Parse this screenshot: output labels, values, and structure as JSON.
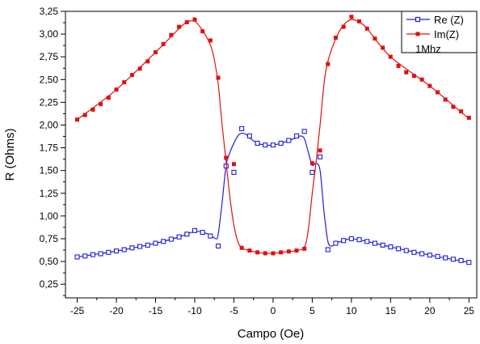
{
  "chart_data": {
    "type": "line",
    "xlabel": "Campo (Oe)",
    "ylabel": "R (Ohms)",
    "xlim": [
      -26.5,
      26
    ],
    "ylim": [
      0.1,
      3.25
    ],
    "xticks": [
      -25,
      -20,
      -15,
      -10,
      -5,
      0,
      5,
      10,
      15,
      20,
      25
    ],
    "xtick_labels": [
      "-25",
      "-20",
      "-15",
      "-10",
      "-5",
      "0",
      "5",
      "10",
      "15",
      "20",
      "25"
    ],
    "yticks": [
      0.25,
      0.5,
      0.75,
      1.0,
      1.25,
      1.5,
      1.75,
      2.0,
      2.25,
      2.5,
      2.75,
      3.0,
      3.25
    ],
    "ytick_labels": [
      "0,25",
      "0,50",
      "0,75",
      "1,00",
      "1,25",
      "1,50",
      "1,75",
      "2,00",
      "2,25",
      "2,50",
      "2,75",
      "3,00",
      "3,25"
    ],
    "grid": false,
    "legend_position": "top-right",
    "annotation": "1Mhz",
    "series": [
      {
        "name": "Re (Z)",
        "color": "#1f1fd6",
        "marker": "open-square",
        "points": [
          [
            -25,
            0.55
          ],
          [
            -24,
            0.56
          ],
          [
            -23,
            0.575
          ],
          [
            -22,
            0.585
          ],
          [
            -21,
            0.6
          ],
          [
            -20,
            0.615
          ],
          [
            -19,
            0.63
          ],
          [
            -18,
            0.65
          ],
          [
            -17,
            0.665
          ],
          [
            -16,
            0.68
          ],
          [
            -15,
            0.7
          ],
          [
            -14,
            0.72
          ],
          [
            -13,
            0.745
          ],
          [
            -12,
            0.77
          ],
          [
            -11,
            0.8
          ],
          [
            -10,
            0.84
          ],
          [
            -9,
            0.82
          ],
          [
            -8,
            0.78
          ],
          [
            -7,
            0.67
          ],
          [
            -6,
            1.55
          ],
          [
            -5,
            1.48
          ],
          [
            -4,
            1.96
          ],
          [
            -3,
            1.88
          ],
          [
            -2,
            1.8
          ],
          [
            -1,
            1.78
          ],
          [
            0,
            1.78
          ],
          [
            1,
            1.8
          ],
          [
            2,
            1.83
          ],
          [
            3,
            1.88
          ],
          [
            4,
            1.93
          ],
          [
            5,
            1.48
          ],
          [
            6,
            1.65
          ],
          [
            7,
            0.63
          ],
          [
            8,
            0.7
          ],
          [
            9,
            0.73
          ],
          [
            10,
            0.75
          ],
          [
            11,
            0.74
          ],
          [
            12,
            0.72
          ],
          [
            13,
            0.7
          ],
          [
            14,
            0.68
          ],
          [
            15,
            0.66
          ],
          [
            16,
            0.64
          ],
          [
            17,
            0.62
          ],
          [
            18,
            0.6
          ],
          [
            19,
            0.585
          ],
          [
            20,
            0.57
          ],
          [
            21,
            0.555
          ],
          [
            22,
            0.54
          ],
          [
            23,
            0.525
          ],
          [
            24,
            0.51
          ],
          [
            25,
            0.49
          ]
        ],
        "curve": [
          [
            -25,
            0.55
          ],
          [
            -20,
            0.615
          ],
          [
            -15,
            0.7
          ],
          [
            -12,
            0.77
          ],
          [
            -10,
            0.83
          ],
          [
            -9,
            0.82
          ],
          [
            -8,
            0.79
          ],
          [
            -7.3,
            0.75
          ],
          [
            -7,
            0.8
          ],
          [
            -6.5,
            1.15
          ],
          [
            -6,
            1.55
          ],
          [
            -5.5,
            1.7
          ],
          [
            -5,
            1.8
          ],
          [
            -4.5,
            1.88
          ],
          [
            -4,
            1.91
          ],
          [
            -3.5,
            1.9
          ],
          [
            -3,
            1.86
          ],
          [
            -2,
            1.8
          ],
          [
            -1,
            1.78
          ],
          [
            0,
            1.78
          ],
          [
            1,
            1.8
          ],
          [
            2,
            1.83
          ],
          [
            3,
            1.86
          ],
          [
            3.5,
            1.88
          ],
          [
            4,
            1.85
          ],
          [
            4.5,
            1.7
          ],
          [
            5,
            1.56
          ],
          [
            5.5,
            1.58
          ],
          [
            6,
            1.5
          ],
          [
            6.5,
            1.05
          ],
          [
            7,
            0.72
          ],
          [
            7.5,
            0.67
          ],
          [
            8,
            0.7
          ],
          [
            9,
            0.73
          ],
          [
            10,
            0.75
          ],
          [
            12,
            0.72
          ],
          [
            15,
            0.66
          ],
          [
            20,
            0.57
          ],
          [
            25,
            0.49
          ]
        ]
      },
      {
        "name": "Im(Z)",
        "color": "#e01010",
        "marker": "filled-square",
        "points": [
          [
            -25,
            2.06
          ],
          [
            -24,
            2.11
          ],
          [
            -23,
            2.17
          ],
          [
            -22,
            2.23
          ],
          [
            -21,
            2.3
          ],
          [
            -20,
            2.39
          ],
          [
            -19,
            2.47
          ],
          [
            -18,
            2.55
          ],
          [
            -17,
            2.62
          ],
          [
            -16,
            2.7
          ],
          [
            -15,
            2.8
          ],
          [
            -14,
            2.89
          ],
          [
            -13,
            2.99
          ],
          [
            -12,
            3.08
          ],
          [
            -11,
            3.13
          ],
          [
            -10,
            3.16
          ],
          [
            -9,
            3.03
          ],
          [
            -8,
            2.93
          ],
          [
            -7,
            2.52
          ],
          [
            -6,
            1.64
          ],
          [
            -5,
            1.57
          ],
          [
            -4,
            0.65
          ],
          [
            -3,
            0.62
          ],
          [
            -2,
            0.6
          ],
          [
            -1,
            0.59
          ],
          [
            0,
            0.59
          ],
          [
            1,
            0.6
          ],
          [
            2,
            0.61
          ],
          [
            3,
            0.62
          ],
          [
            4,
            0.64
          ],
          [
            5,
            1.58
          ],
          [
            6,
            1.72
          ],
          [
            7,
            2.67
          ],
          [
            8,
            2.96
          ],
          [
            9,
            3.08
          ],
          [
            10,
            3.19
          ],
          [
            11,
            3.14
          ],
          [
            12,
            3.06
          ],
          [
            13,
            2.95
          ],
          [
            14,
            2.85
          ],
          [
            15,
            2.75
          ],
          [
            16,
            2.65
          ],
          [
            17,
            2.58
          ],
          [
            18,
            2.54
          ],
          [
            19,
            2.5
          ],
          [
            20,
            2.43
          ],
          [
            21,
            2.36
          ],
          [
            22,
            2.28
          ],
          [
            23,
            2.2
          ],
          [
            24,
            2.15
          ],
          [
            25,
            2.08
          ]
        ],
        "curve": [
          [
            -25,
            2.06
          ],
          [
            -20,
            2.39
          ],
          [
            -15,
            2.8
          ],
          [
            -12,
            3.06
          ],
          [
            -11,
            3.13
          ],
          [
            -10,
            3.14
          ],
          [
            -9,
            3.04
          ],
          [
            -8,
            2.88
          ],
          [
            -7.5,
            2.72
          ],
          [
            -7,
            2.45
          ],
          [
            -6.5,
            2.0
          ],
          [
            -6,
            1.6
          ],
          [
            -5.5,
            1.2
          ],
          [
            -5,
            0.9
          ],
          [
            -4.5,
            0.72
          ],
          [
            -4,
            0.65
          ],
          [
            -3,
            0.62
          ],
          [
            -2,
            0.6
          ],
          [
            -1,
            0.59
          ],
          [
            0,
            0.59
          ],
          [
            1,
            0.6
          ],
          [
            2,
            0.61
          ],
          [
            3,
            0.62
          ],
          [
            4,
            0.66
          ],
          [
            4.5,
            0.85
          ],
          [
            5,
            1.25
          ],
          [
            5.5,
            1.6
          ],
          [
            6,
            2.0
          ],
          [
            6.5,
            2.45
          ],
          [
            7,
            2.7
          ],
          [
            8,
            2.95
          ],
          [
            9,
            3.1
          ],
          [
            10,
            3.16
          ],
          [
            11,
            3.13
          ],
          [
            12,
            3.06
          ],
          [
            15,
            2.75
          ],
          [
            20,
            2.43
          ],
          [
            25,
            2.07
          ]
        ]
      }
    ]
  }
}
